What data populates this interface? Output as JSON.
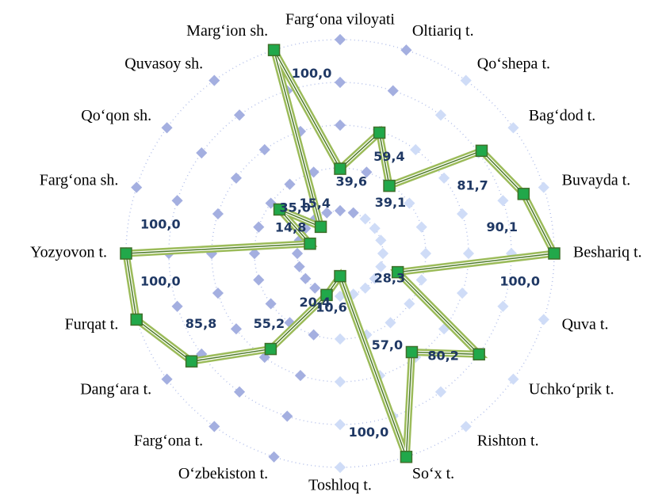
{
  "chart_data": {
    "type": "radar",
    "categories": [
      "Farg‘ona viloyati",
      "Oltiariq t.",
      "Qo‘shepa t.",
      "Bag‘dod t.",
      "Buvayda t.",
      "Beshariq t.",
      "Quva t.",
      "Uchko‘prik t.",
      "Rishton t.",
      "So‘x t.",
      "Toshloq t.",
      "O‘zbekiston t.",
      "Farg‘ona t.",
      "Dang‘ara t.",
      "Furqat t.",
      "Yozyovon t.",
      "Farg‘ona sh.",
      "Qo‘qon sh.",
      "Quvasoy sh.",
      "Marg‘ion sh."
    ],
    "series": [
      {
        "color": "#9bbb59",
        "values": [
          39.6,
          59.4,
          39.1,
          81.7,
          90.1,
          100,
          28.3,
          80.2,
          57.0,
          100,
          10.6,
          20.4,
          55.2,
          85.8,
          100,
          100,
          14.8,
          35.0,
          15.4,
          100
        ],
        "value_labels": [
          "39,6",
          "59,4",
          "39,1",
          "81,7",
          "90,1",
          "100,0",
          "28,3",
          "80,2",
          "57,0",
          "100,0",
          "10,6",
          "20,4",
          "55,2",
          "85,8",
          "100,0",
          "100,0",
          "14,8",
          "35,0",
          "15,4",
          "100,0"
        ]
      }
    ],
    "rlim": [
      0,
      100
    ],
    "rticks": [
      20,
      40,
      60,
      80,
      100
    ],
    "grid": true
  }
}
